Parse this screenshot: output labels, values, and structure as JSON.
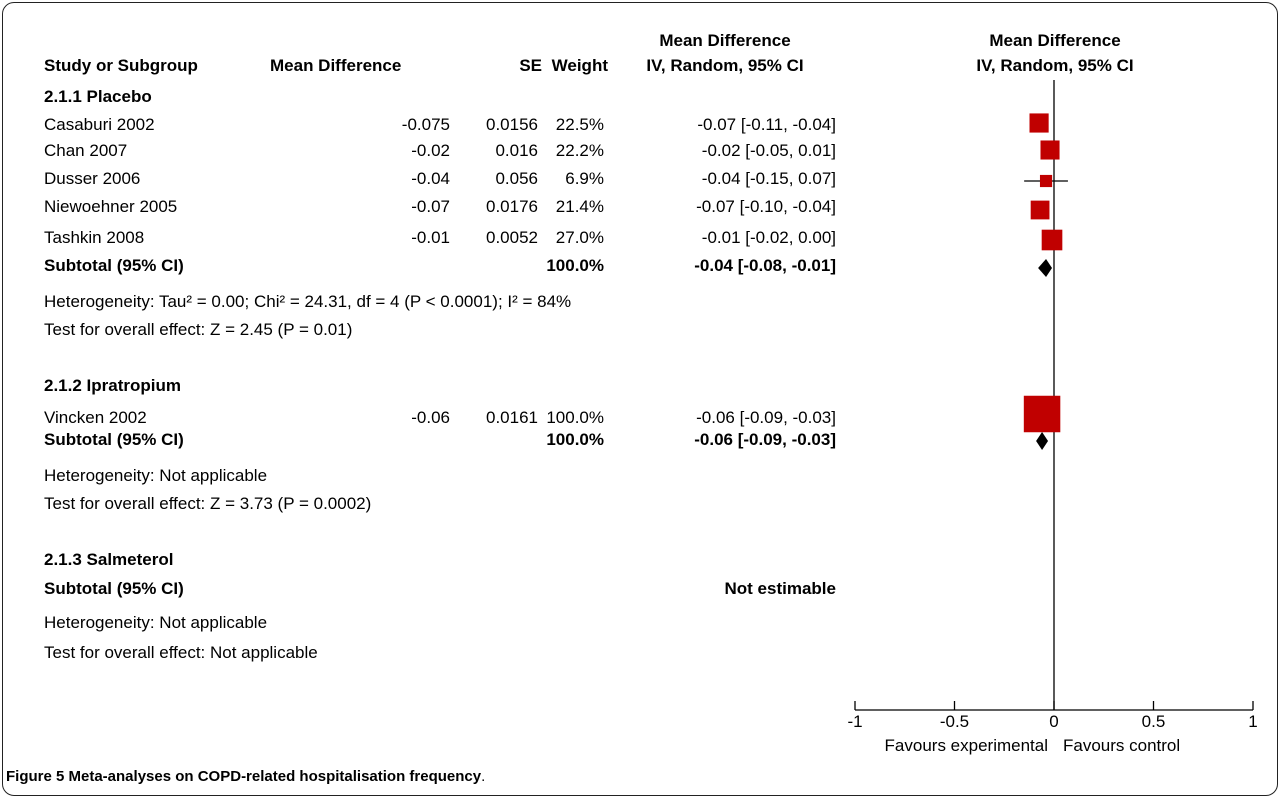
{
  "columns": {
    "study": "Study or Subgroup",
    "md": "Mean Difference",
    "se": "SE",
    "weight": "Weight",
    "ci_top": "Mean Difference",
    "ci_bottom": "IV, Random, 95% CI",
    "plot_top": "Mean Difference",
    "plot_bottom": "IV, Random, 95% CI"
  },
  "subgroups": [
    {
      "title": "2.1.1 Placebo",
      "subtotal_label": "Subtotal (95% CI)",
      "subtotal_weight": "100.0%",
      "subtotal_ci": "-0.04 [-0.08, -0.01]",
      "heterogeneity": "Heterogeneity: Tau² = 0.00; Chi² = 24.31, df = 4 (P < 0.0001); I² = 84%",
      "overall": "Test for overall effect: Z = 2.45 (P = 0.01)"
    },
    {
      "title": "2.1.2 Ipratropium",
      "subtotal_label": "Subtotal (95% CI)",
      "subtotal_weight": "100.0%",
      "subtotal_ci": "-0.06 [-0.09, -0.03]",
      "heterogeneity": "Heterogeneity: Not applicable",
      "overall": "Test for overall effect: Z = 3.73 (P = 0.0002)"
    },
    {
      "title": "2.1.3 Salmeterol",
      "subtotal_label": "Subtotal (95% CI)",
      "subtotal_ci": "Not estimable",
      "heterogeneity": "Heterogeneity: Not applicable",
      "overall": "Test for overall effect: Not applicable"
    }
  ],
  "chart_data": {
    "type": "forest",
    "xlim": [
      -1,
      1
    ],
    "ticks": [
      "-1",
      "-0.5",
      "0",
      "0.5",
      "1"
    ],
    "tick_values": [
      -1,
      -0.5,
      0,
      0.5,
      1
    ],
    "favours_left": "Favours experimental",
    "favours_right": "Favours control",
    "colors": {
      "study_box": "#c00000",
      "diamond": "#000000",
      "axis": "#000000"
    },
    "studies": [
      {
        "name": "Casaburi 2002",
        "md": "-0.075",
        "se": "0.0156",
        "weight": "22.5%",
        "ci": "-0.07 [-0.11, -0.04]",
        "est": -0.075,
        "lo": -0.11,
        "hi": -0.04,
        "w": 22.5,
        "group": 0
      },
      {
        "name": "Chan 2007",
        "md": "-0.02",
        "se": "0.016",
        "weight": "22.2%",
        "ci": "-0.02 [-0.05, 0.01]",
        "est": -0.02,
        "lo": -0.05,
        "hi": 0.01,
        "w": 22.2,
        "group": 0
      },
      {
        "name": "Dusser 2006",
        "md": "-0.04",
        "se": "0.056",
        "weight": "6.9%",
        "ci": "-0.04 [-0.15, 0.07]",
        "est": -0.04,
        "lo": -0.15,
        "hi": 0.07,
        "w": 6.9,
        "group": 0
      },
      {
        "name": "Niewoehner 2005",
        "md": "-0.07",
        "se": "0.0176",
        "weight": "21.4%",
        "ci": "-0.07 [-0.10, -0.04]",
        "est": -0.07,
        "lo": -0.1,
        "hi": -0.04,
        "w": 21.4,
        "group": 0
      },
      {
        "name": "Tashkin 2008",
        "md": "-0.01",
        "se": "0.0052",
        "weight": "27.0%",
        "ci": "-0.01 [-0.02, 0.00]",
        "est": -0.01,
        "lo": -0.02,
        "hi": 0.0,
        "w": 27.0,
        "group": 0
      },
      {
        "name": "Vincken 2002",
        "md": "-0.06",
        "se": "0.0161",
        "weight": "100.0%",
        "ci": "-0.06 [-0.09, -0.03]",
        "est": -0.06,
        "lo": -0.09,
        "hi": -0.03,
        "w": 100.0,
        "group": 1
      }
    ],
    "subtotals": [
      {
        "group": 0,
        "est": -0.04,
        "lo": -0.08,
        "hi": -0.01
      },
      {
        "group": 1,
        "est": -0.06,
        "lo": -0.09,
        "hi": -0.03
      }
    ]
  },
  "caption": {
    "lead": "Figure 5 Meta-analyses on COPD-related hospitalisation frequency",
    "tail": "."
  }
}
